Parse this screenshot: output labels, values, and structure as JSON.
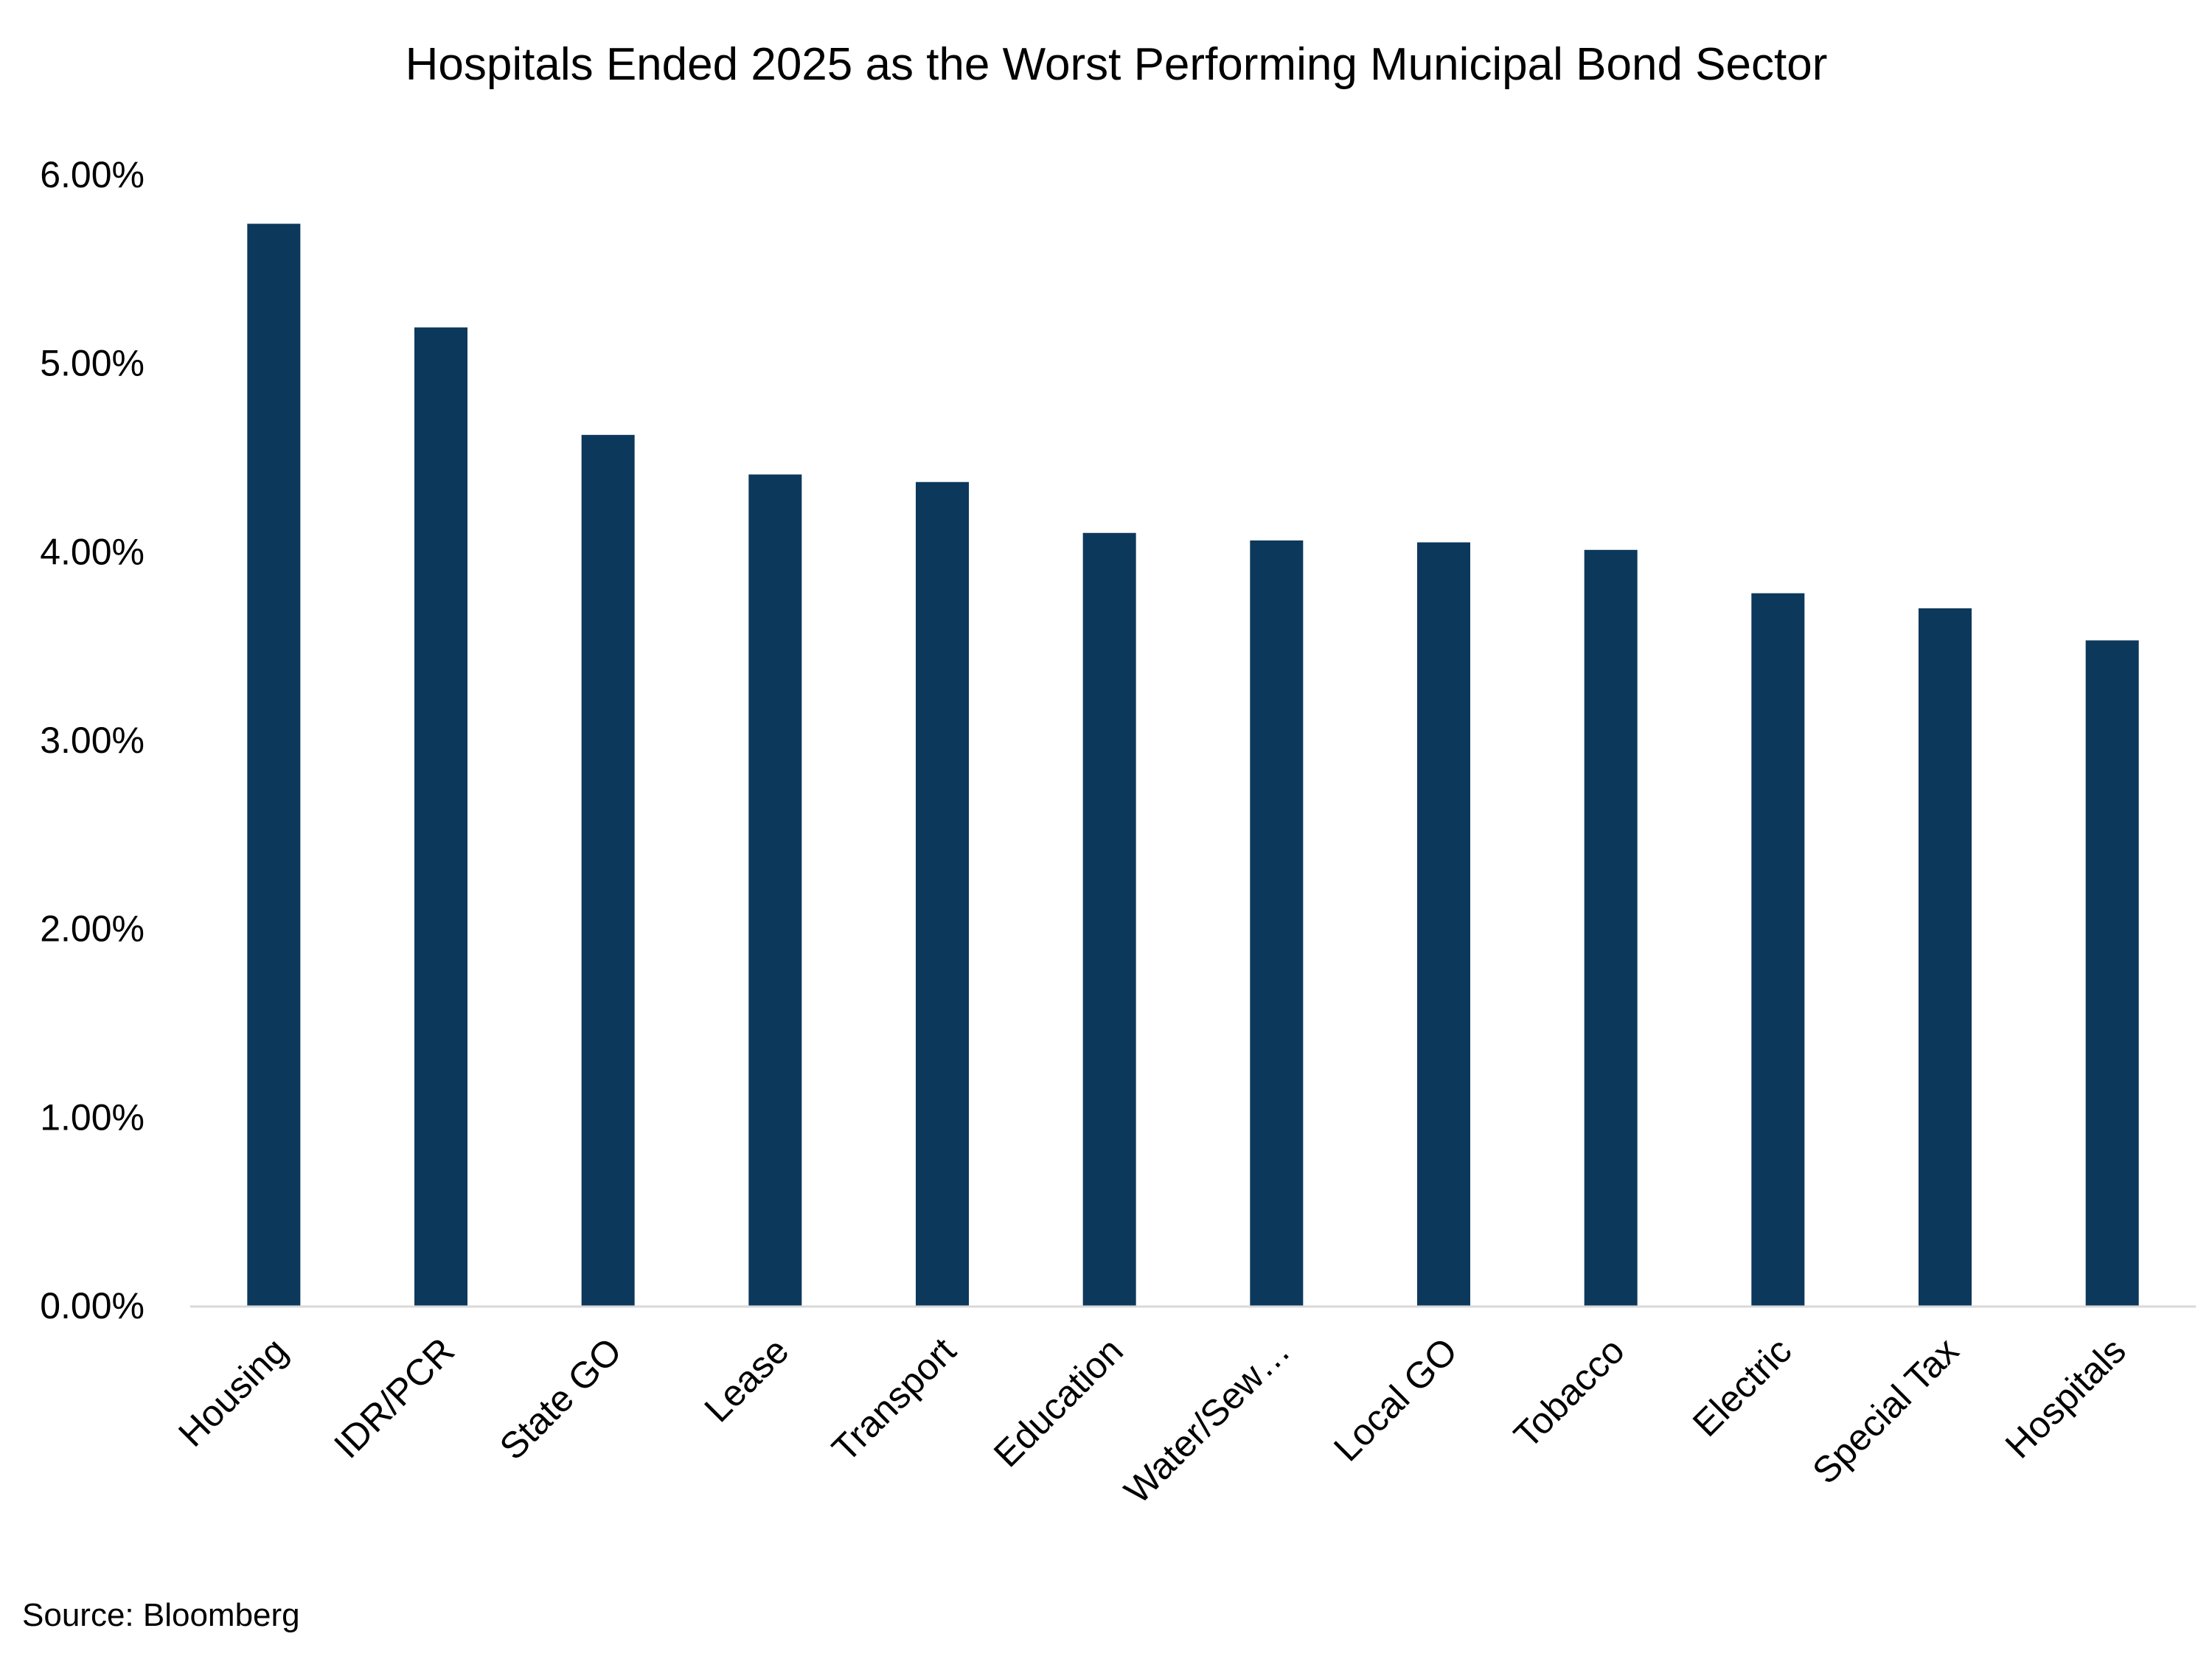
{
  "chart_data": {
    "type": "bar",
    "title": "Hospitals Ended 2025 as the Worst Performing Municipal Bond Sector",
    "categories": [
      "Housing",
      "IDR/PCR",
      "State GO",
      "Lease",
      "Transport",
      "Education",
      "Water/Sew…",
      "Local GO",
      "Tobacco",
      "Electric",
      "Special Tax",
      "Hospitals"
    ],
    "values": [
      5.74,
      5.19,
      4.62,
      4.41,
      4.37,
      4.1,
      4.06,
      4.05,
      4.01,
      3.78,
      3.7,
      3.53
    ],
    "value_unit": "%",
    "y_ticks": [
      "0.00%",
      "1.00%",
      "2.00%",
      "3.00%",
      "4.00%",
      "5.00%",
      "6.00%"
    ],
    "ylim": [
      0,
      6
    ],
    "xlabel": "",
    "ylabel": "",
    "grid": false,
    "legend": "none",
    "bar_color": "#0c385c",
    "axis_color": "#d9d9d9"
  },
  "source": "Source: Bloomberg"
}
